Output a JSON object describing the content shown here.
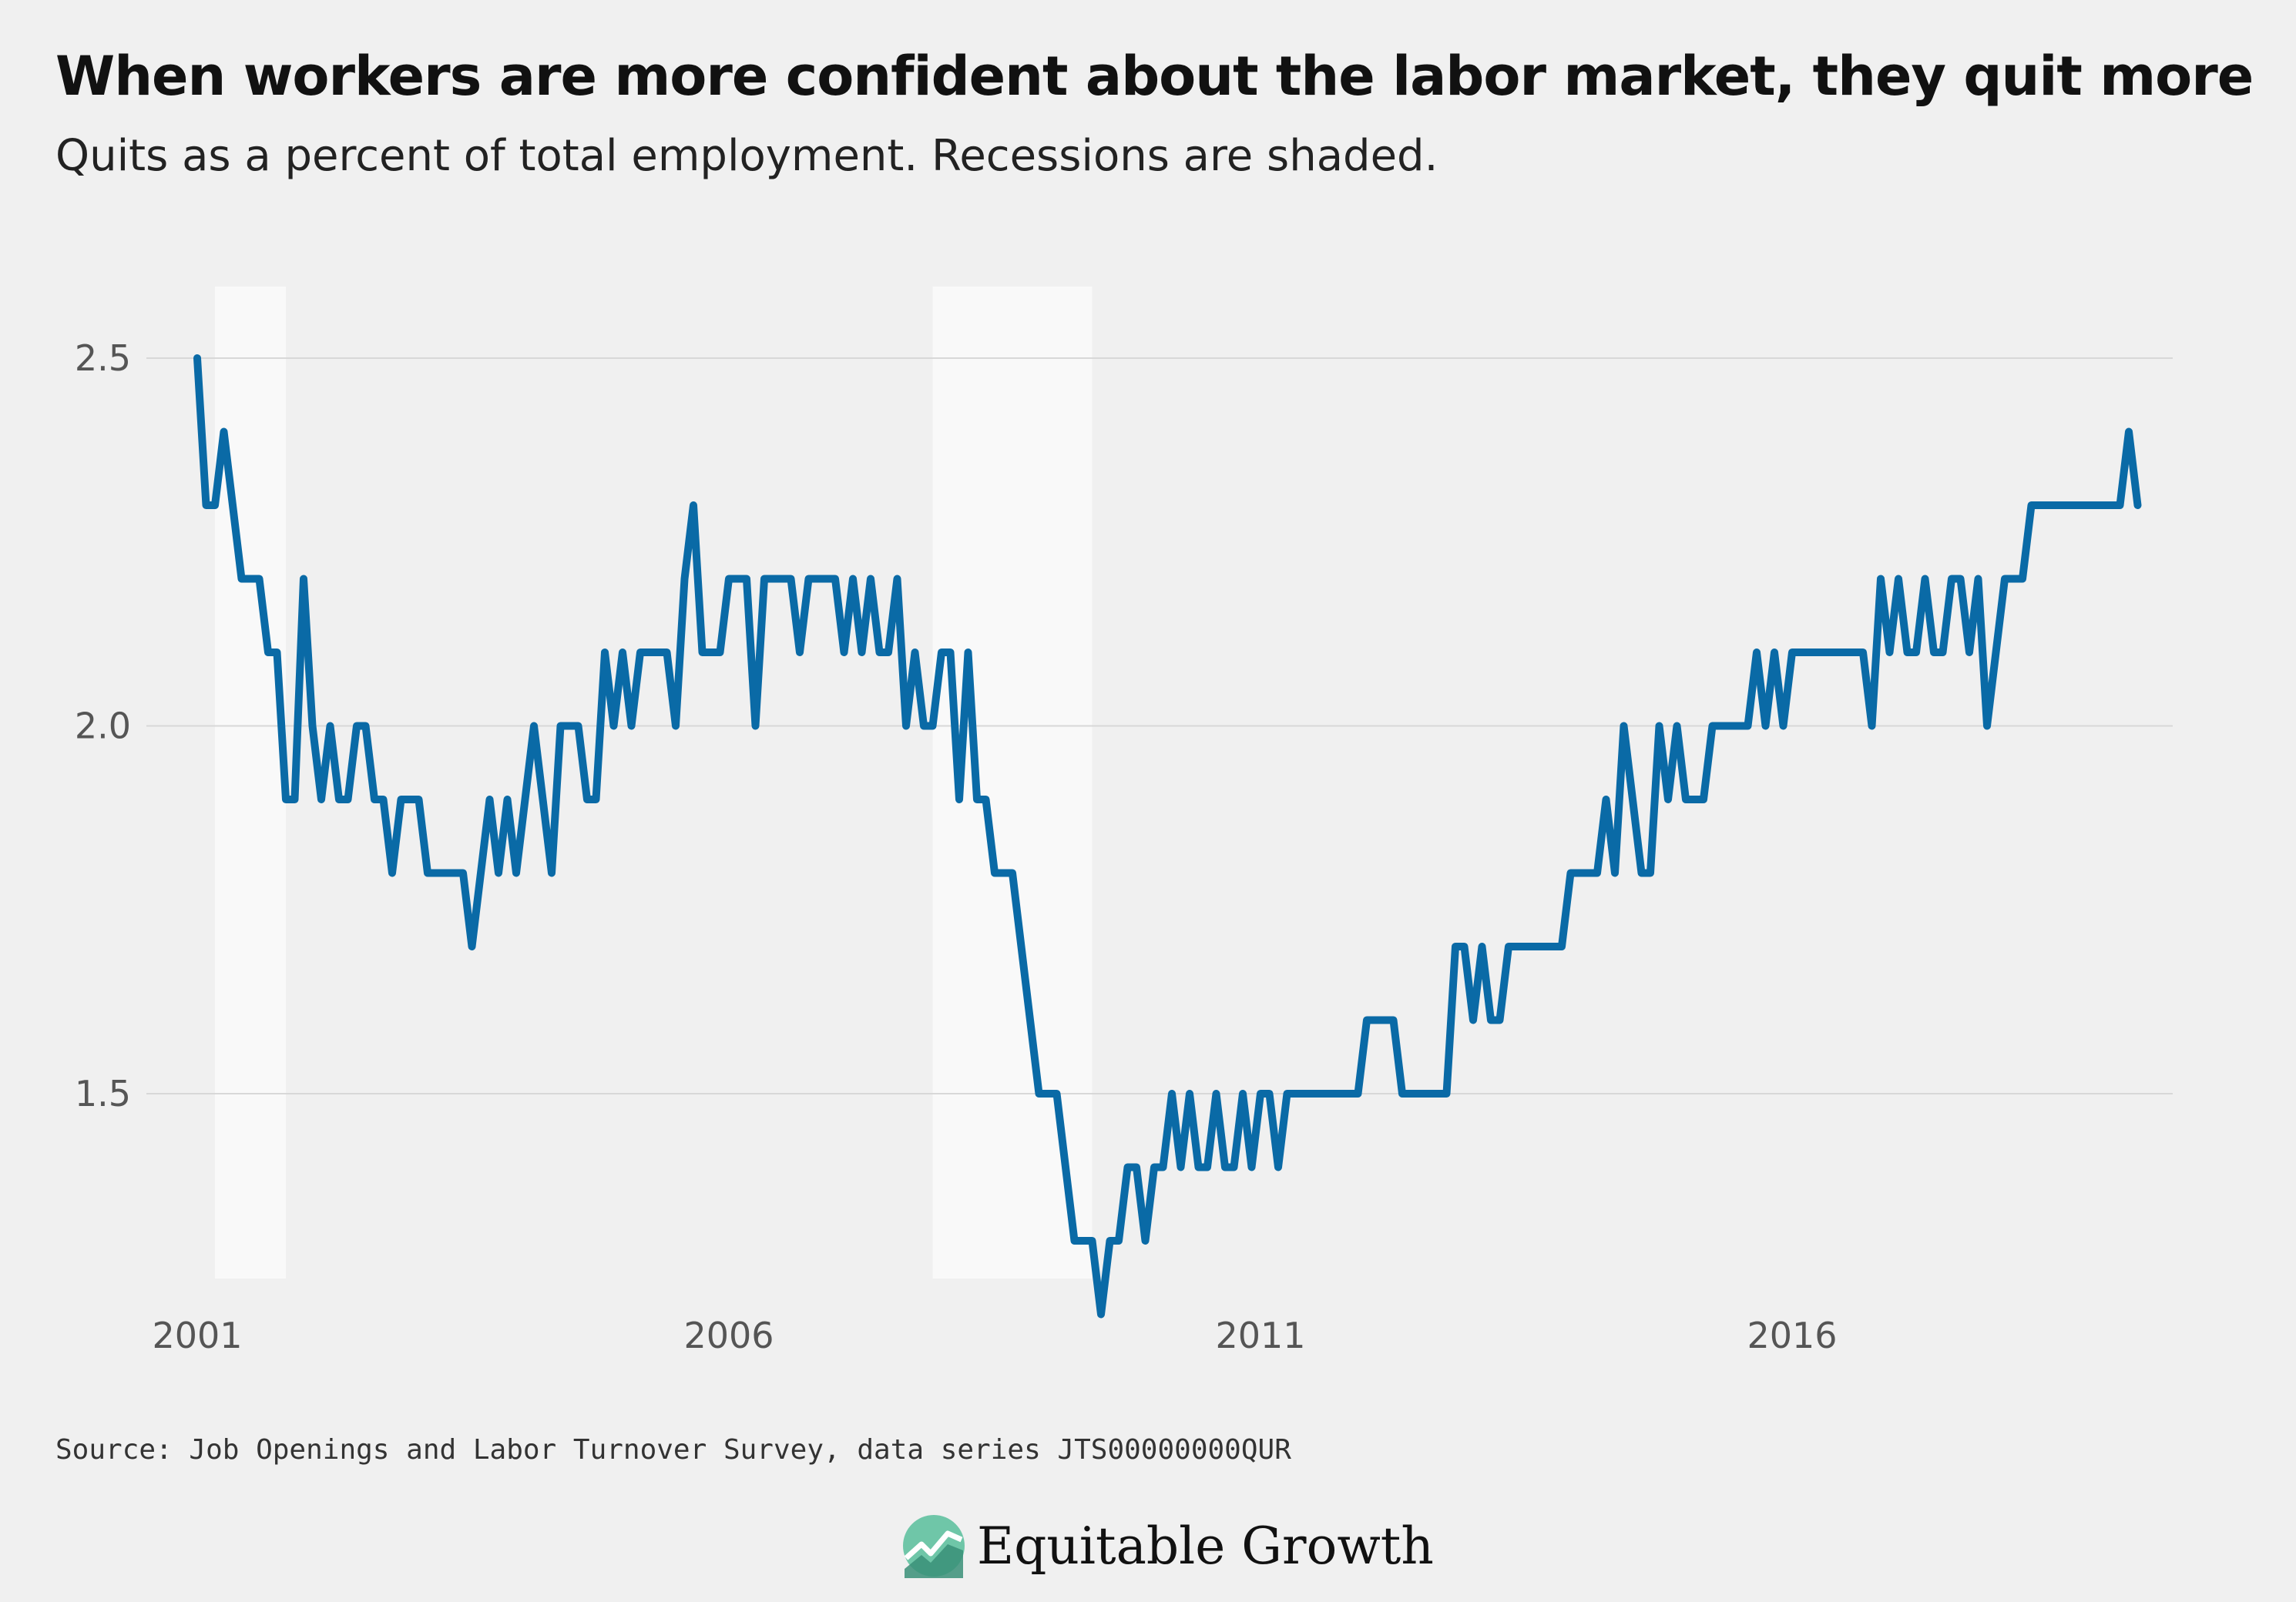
{
  "title": "When workers are more confident about the labor market, they quit more",
  "subtitle": "Quits as a percent of total employment. Recessions are shaded.",
  "source": "Source: Job Openings and Labor Turnover Survey, data series JTS00000000QUR",
  "brand": {
    "name": "Equitable Growth",
    "logo_icon": "rising-line-logo-icon"
  },
  "colors": {
    "line": "#0a6aa6",
    "recession": "#f9f9f9",
    "grid": "#d8d8d8",
    "background": "#f0f0f0"
  },
  "chart_data": {
    "type": "line",
    "title": "When workers are more confident about the labor market, they quit more",
    "subtitle": "Quits as a percent of total employment. Recessions are shaded.",
    "xlabel": "",
    "ylabel": "",
    "x_start": "2001-01",
    "frequency": "monthly",
    "xlim": [
      "2001-01",
      "2019-07"
    ],
    "ylim": [
      1.2,
      2.6
    ],
    "x_ticks": [
      {
        "x": "2001-01",
        "label": "2001"
      },
      {
        "x": "2006-01",
        "label": "2006"
      },
      {
        "x": "2011-01",
        "label": "2011"
      },
      {
        "x": "2016-01",
        "label": "2016"
      }
    ],
    "y_ticks": [
      {
        "y": 1.5,
        "label": "1.5"
      },
      {
        "y": 2.0,
        "label": "2.0"
      },
      {
        "y": 2.5,
        "label": "2.5"
      }
    ],
    "grid": true,
    "legend": "none",
    "recessions": [
      {
        "start": "2001-03",
        "end": "2001-11"
      },
      {
        "start": "2007-12",
        "end": "2009-06"
      }
    ],
    "series": [
      {
        "values": [
          2.5,
          2.3,
          2.3,
          2.4,
          2.3,
          2.2,
          2.2,
          2.2,
          2.1,
          2.1,
          1.9,
          1.9,
          2.2,
          2.0,
          1.9,
          2.0,
          1.9,
          1.9,
          2.0,
          2.0,
          1.9,
          1.9,
          1.8,
          1.9,
          1.9,
          1.9,
          1.8,
          1.8,
          1.8,
          1.8,
          1.8,
          1.7,
          1.8,
          1.9,
          1.8,
          1.9,
          1.8,
          1.9,
          2.0,
          1.9,
          1.8,
          2.0,
          2.0,
          2.0,
          1.9,
          1.9,
          2.1,
          2.0,
          2.1,
          2.0,
          2.1,
          2.1,
          2.1,
          2.1,
          2.0,
          2.2,
          2.3,
          2.1,
          2.1,
          2.1,
          2.2,
          2.2,
          2.2,
          2.0,
          2.2,
          2.2,
          2.2,
          2.2,
          2.1,
          2.2,
          2.2,
          2.2,
          2.2,
          2.1,
          2.2,
          2.1,
          2.2,
          2.1,
          2.1,
          2.2,
          2.0,
          2.1,
          2.0,
          2.0,
          2.1,
          2.1,
          1.9,
          2.1,
          1.9,
          1.9,
          1.8,
          1.8,
          1.8,
          1.7,
          1.6,
          1.5,
          1.5,
          1.5,
          1.4,
          1.3,
          1.3,
          1.3,
          1.2,
          1.3,
          1.3,
          1.4,
          1.4,
          1.3,
          1.4,
          1.4,
          1.5,
          1.4,
          1.5,
          1.4,
          1.4,
          1.5,
          1.4,
          1.4,
          1.5,
          1.4,
          1.5,
          1.5,
          1.4,
          1.5,
          1.5,
          1.5,
          1.5,
          1.5,
          1.5,
          1.5,
          1.5,
          1.5,
          1.6,
          1.6,
          1.6,
          1.6,
          1.5,
          1.5,
          1.5,
          1.5,
          1.5,
          1.5,
          1.7,
          1.7,
          1.6,
          1.7,
          1.6,
          1.6,
          1.7,
          1.7,
          1.7,
          1.7,
          1.7,
          1.7,
          1.7,
          1.8,
          1.8,
          1.8,
          1.8,
          1.9,
          1.8,
          2.0,
          1.9,
          1.8,
          1.8,
          2.0,
          1.9,
          2.0,
          1.9,
          1.9,
          1.9,
          2.0,
          2.0,
          2.0,
          2.0,
          2.0,
          2.1,
          2.0,
          2.1,
          2.0,
          2.1,
          2.1,
          2.1,
          2.1,
          2.1,
          2.1,
          2.1,
          2.1,
          2.1,
          2.0,
          2.2,
          2.1,
          2.2,
          2.1,
          2.1,
          2.2,
          2.1,
          2.1,
          2.2,
          2.2,
          2.1,
          2.2,
          2.0,
          2.1,
          2.2,
          2.2,
          2.2,
          2.3,
          2.3,
          2.3,
          2.3,
          2.3,
          2.3,
          2.3,
          2.3,
          2.3,
          2.3,
          2.3,
          2.4,
          2.3
        ]
      }
    ]
  }
}
